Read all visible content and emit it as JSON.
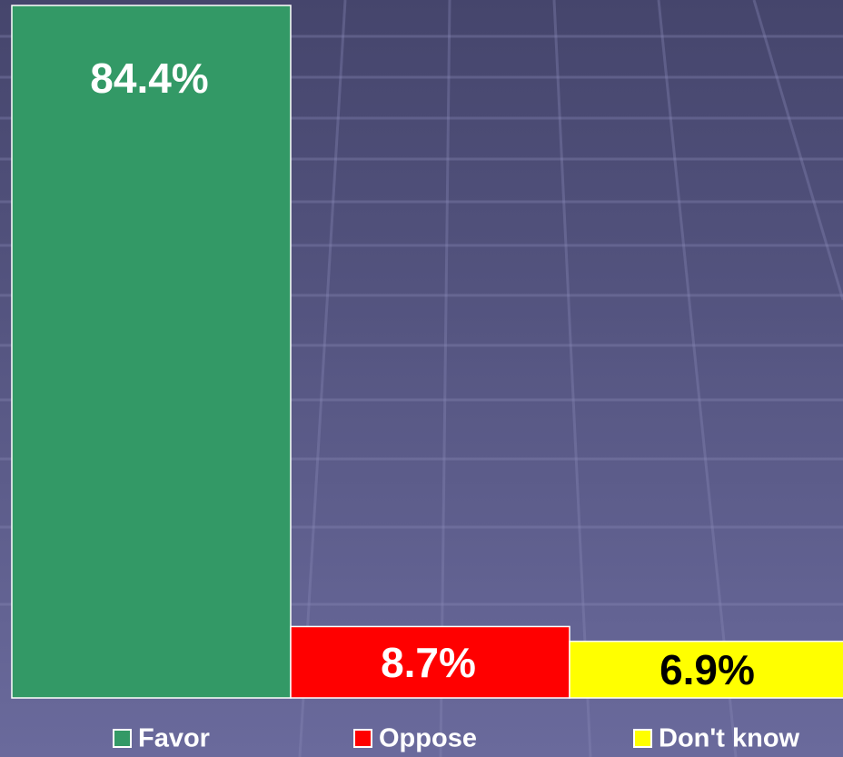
{
  "chart_data": {
    "type": "bar",
    "series": [
      {
        "name": "Favor",
        "color": "#339966",
        "label_color": "#ffffff",
        "values": [
          84.4
        ],
        "value_labels": [
          "84.4%"
        ]
      },
      {
        "name": "Oppose",
        "color": "#ff0000",
        "label_color": "#ffffff",
        "values": [
          8.7
        ],
        "value_labels": [
          "8.7%"
        ]
      },
      {
        "name": "Don't know",
        "color": "#ffff00",
        "label_color": "#000000",
        "values": [
          6.9
        ],
        "value_labels": [
          "6.9%"
        ]
      }
    ]
  }
}
